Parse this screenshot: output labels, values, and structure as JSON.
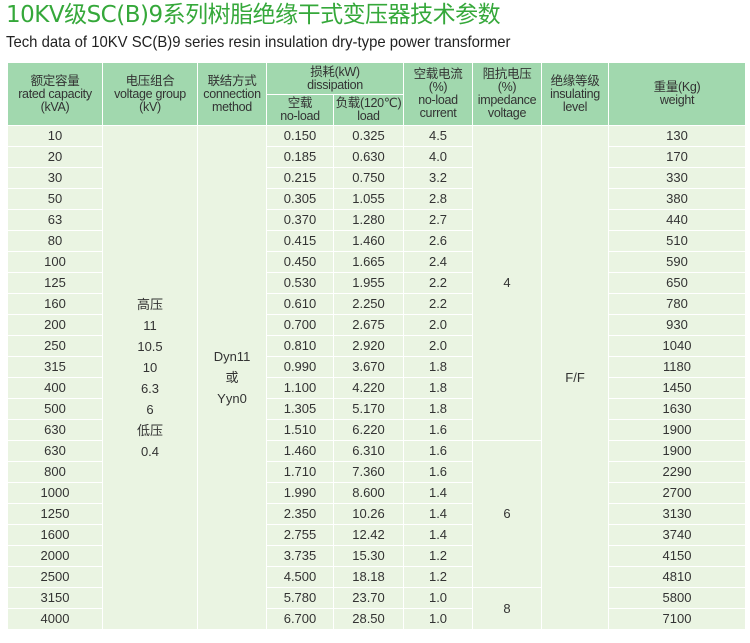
{
  "title": "10KV级SC(B)9系列树脂绝缘干式变压器技术参数",
  "subtitle": "Tech data of 10KV SC(B)9 series resin insulation dry-type power transformer",
  "colors": {
    "title": "#35a83a",
    "header_bg": "#a1d8ae",
    "body_bg": "#eaf4e2"
  },
  "headers": {
    "capacity": [
      "额定容量",
      "rated capacity",
      "(kVA)"
    ],
    "voltage": [
      "电压组合",
      "voltage group",
      "(kV)"
    ],
    "connection": [
      "联结方式",
      "connection",
      "method"
    ],
    "loss": [
      "损耗(kW)",
      "dissipation"
    ],
    "noload_loss": [
      "空载",
      "no-load"
    ],
    "load_loss": [
      "负载(120℃)",
      "load"
    ],
    "current": [
      "空载电流",
      "(%)",
      "no-load",
      "current"
    ],
    "impedance": [
      "阻抗电压",
      "(%)",
      "impedance",
      "voltage"
    ],
    "insulation": [
      "绝缘等级",
      "insulating",
      "level"
    ],
    "weight": [
      "重量(Kg)",
      "weight"
    ]
  },
  "voltage_group": [
    "高压",
    "11",
    "10.5",
    "10",
    "6.3",
    "6",
    "低压",
    "0.4"
  ],
  "connection_method": [
    "Dyn11",
    "或",
    "Yyn0"
  ],
  "insulation_level": "F/F",
  "impedance_groups": [
    {
      "value": "4",
      "rows": 15
    },
    {
      "value": "6",
      "rows": 7
    },
    {
      "value": "8",
      "rows": 2
    }
  ],
  "rows": [
    [
      "10",
      "0.150",
      "0.325",
      "4.5",
      "130"
    ],
    [
      "20",
      "0.185",
      "0.630",
      "4.0",
      "170"
    ],
    [
      "30",
      "0.215",
      "0.750",
      "3.2",
      "330"
    ],
    [
      "50",
      "0.305",
      "1.055",
      "2.8",
      "380"
    ],
    [
      "63",
      "0.370",
      "1.280",
      "2.7",
      "440"
    ],
    [
      "80",
      "0.415",
      "1.460",
      "2.6",
      "510"
    ],
    [
      "100",
      "0.450",
      "1.665",
      "2.4",
      "590"
    ],
    [
      "125",
      "0.530",
      "1.955",
      "2.2",
      "650"
    ],
    [
      "160",
      "0.610",
      "2.250",
      "2.2",
      "780"
    ],
    [
      "200",
      "0.700",
      "2.675",
      "2.0",
      "930"
    ],
    [
      "250",
      "0.810",
      "2.920",
      "2.0",
      "1040"
    ],
    [
      "315",
      "0.990",
      "3.670",
      "1.8",
      "1180"
    ],
    [
      "400",
      "1.100",
      "4.220",
      "1.8",
      "1450"
    ],
    [
      "500",
      "1.305",
      "5.170",
      "1.8",
      "1630"
    ],
    [
      "630",
      "1.510",
      "6.220",
      "1.6",
      "1900"
    ],
    [
      "630",
      "1.460",
      "6.310",
      "1.6",
      "1900"
    ],
    [
      "800",
      "1.710",
      "7.360",
      "1.6",
      "2290"
    ],
    [
      "1000",
      "1.990",
      "8.600",
      "1.4",
      "2700"
    ],
    [
      "1250",
      "2.350",
      "10.26",
      "1.4",
      "3130"
    ],
    [
      "1600",
      "2.755",
      "12.42",
      "1.4",
      "3740"
    ],
    [
      "2000",
      "3.735",
      "15.30",
      "1.2",
      "4150"
    ],
    [
      "2500",
      "4.500",
      "18.18",
      "1.2",
      "4810"
    ],
    [
      "3150",
      "5.780",
      "23.70",
      "1.0",
      "5800"
    ],
    [
      "4000",
      "6.700",
      "28.50",
      "1.0",
      "7100"
    ]
  ]
}
